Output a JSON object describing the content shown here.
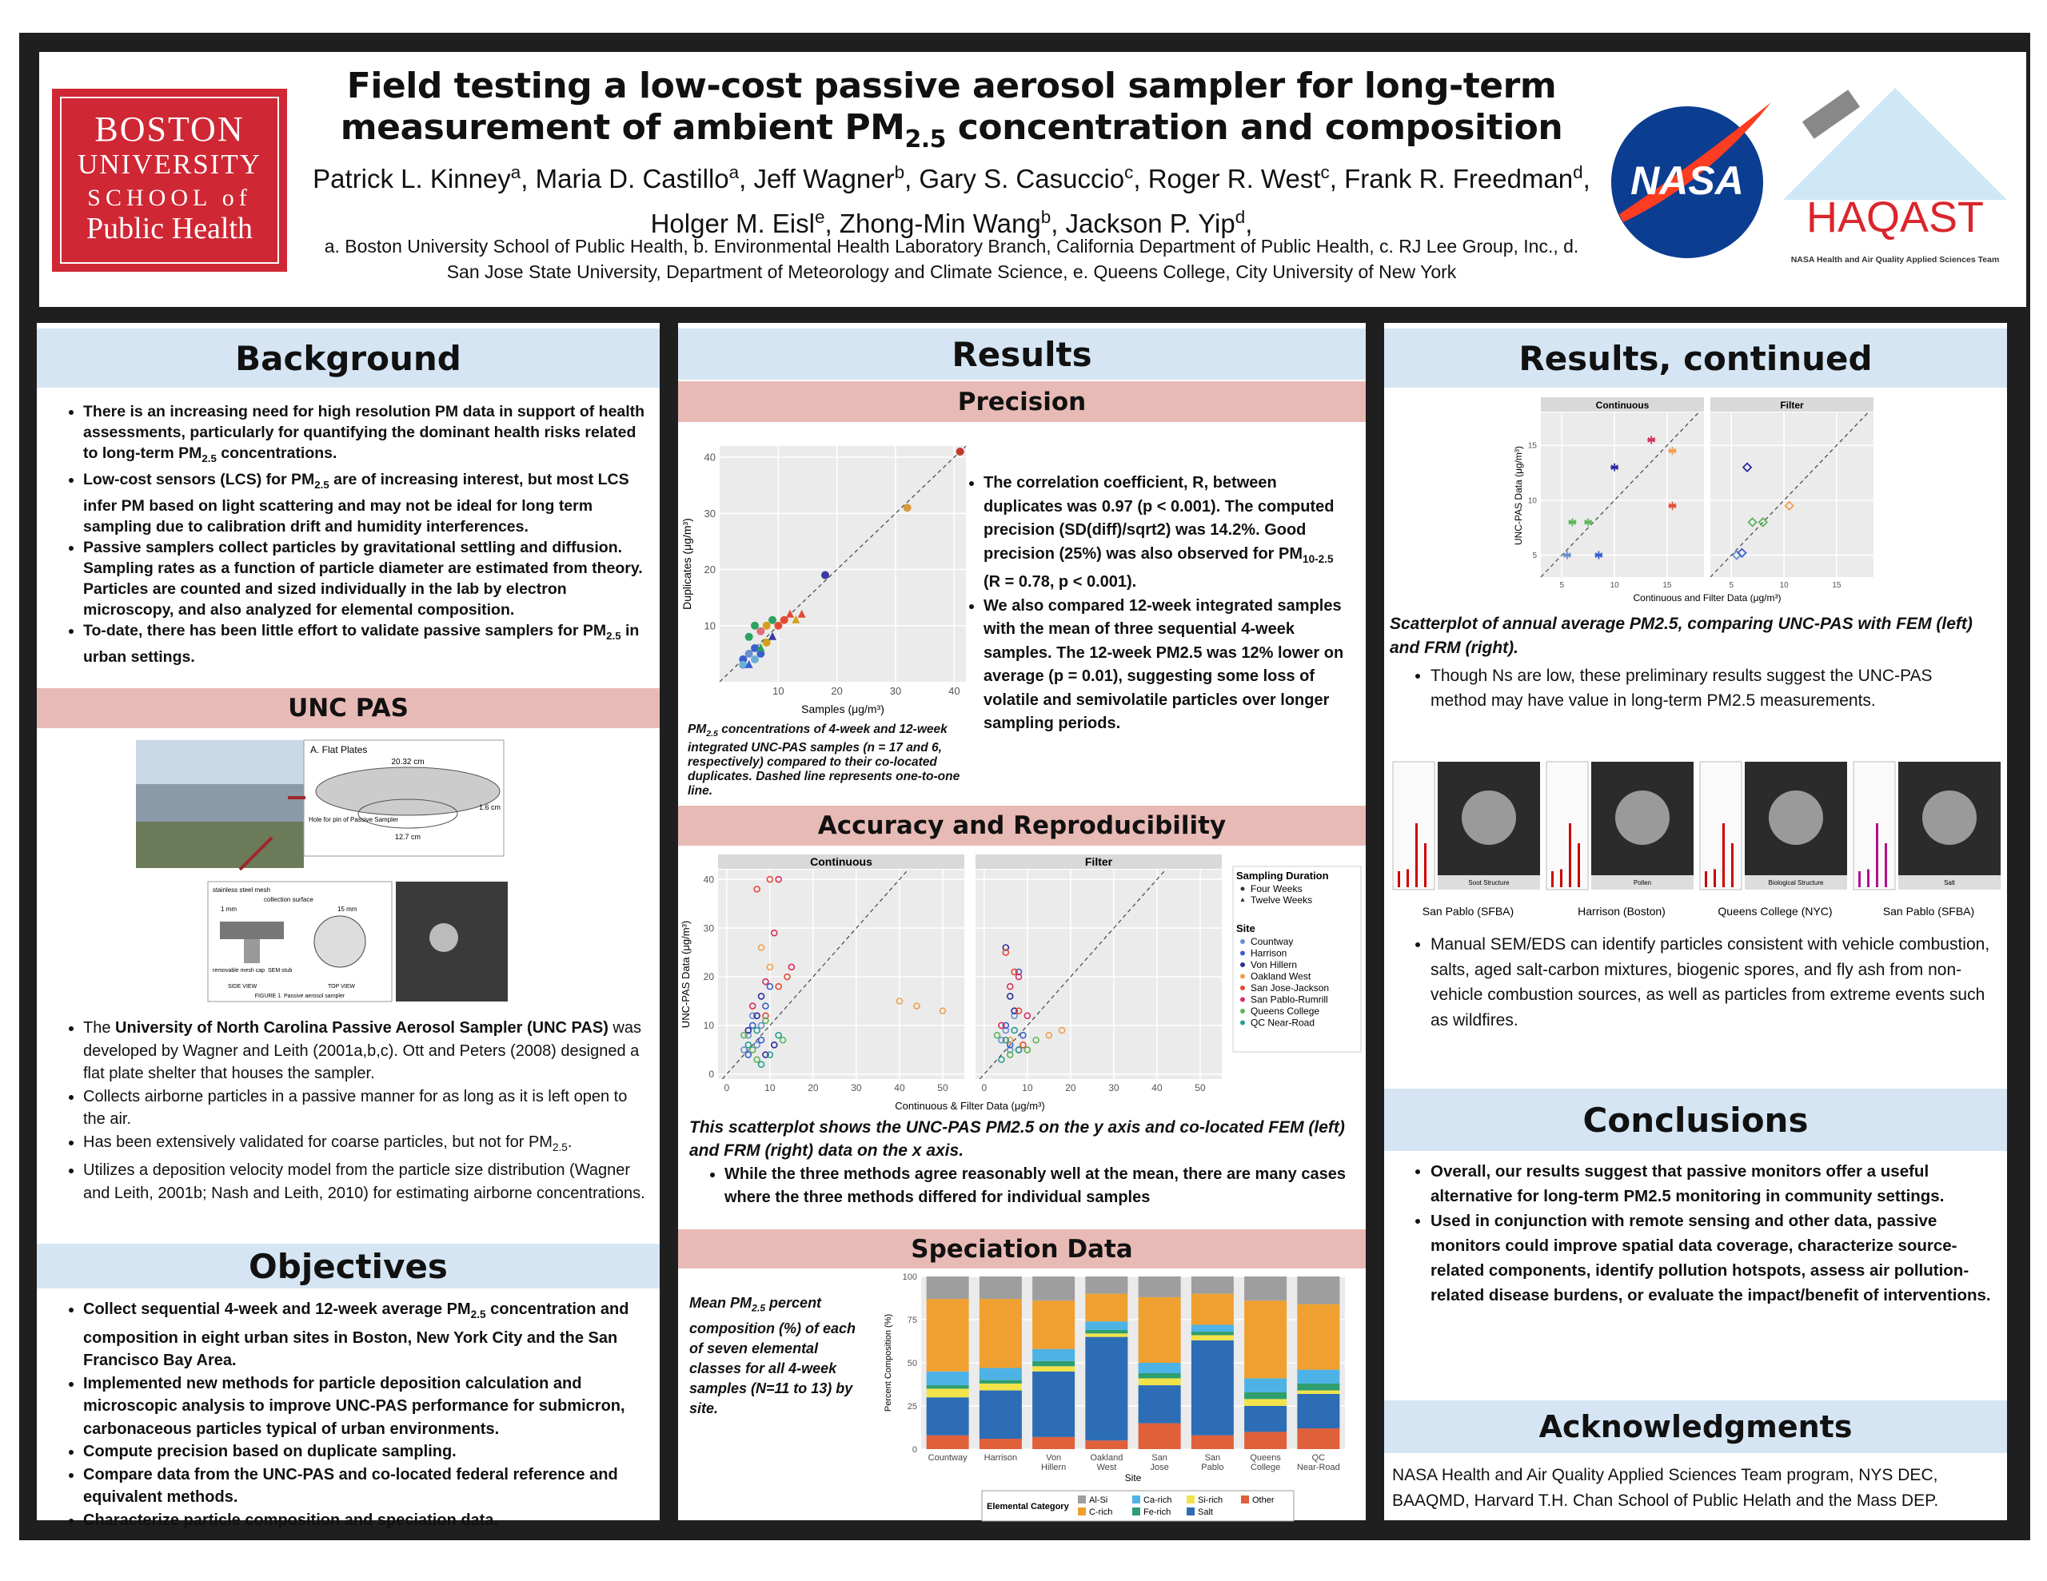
{
  "header": {
    "logo_left": [
      "BOSTON",
      "UNIVERSITY",
      "SCHOOL of",
      "Public Health"
    ],
    "title": [
      "Field testing a low-cost passive aerosol sampler for long-term measurement of ambient PM",
      {
        "sub": "2.5"
      },
      " concentration and composition"
    ],
    "authors": [
      "Patrick L. Kinney",
      {
        "sup": "a"
      },
      ", Maria D. Castillo",
      {
        "sup": "a"
      },
      ", Jeff Wagner",
      {
        "sup": "b"
      },
      ", Gary S. Casuccio",
      {
        "sup": "c"
      },
      ", Roger R. West",
      {
        "sup": "c"
      },
      ", Frank R. Freedman",
      {
        "sup": "d"
      },
      ", Holger M. Eisl",
      {
        "sup": "e"
      },
      ", Zhong-Min Wang",
      {
        "sup": "b"
      },
      ", Jackson P. Yip",
      {
        "sup": "d"
      },
      ","
    ],
    "affiliations": "a. Boston University School of Public Health, b. Environmental Health Laboratory Branch, California Department of Public Health, c. RJ Lee Group, Inc., d. San Jose State University, Department of Meteorology and Climate Science, e. Queens College, City University of New York",
    "nasa": "NASA",
    "haqast": "HAQAST",
    "haqast_sub": "NASA Health and Air Quality Applied Sciences Team"
  },
  "background": {
    "heading": "Background",
    "bullets": [
      [
        "There is an increasing need for high resolution PM data in support of health assessments, particularly for quantifying the dominant health risks related to long-term PM",
        {
          "sub": "2.5"
        },
        " concentrations."
      ],
      [
        "Low-cost sensors (LCS) for PM",
        {
          "sub": "2.5"
        },
        " are of increasing interest, but most LCS infer PM based on light scattering and may not be ideal for long term sampling due to calibration drift and humidity interferences."
      ],
      "Passive samplers collect particles by gravitational settling and diffusion. Sampling rates as a function of particle diameter are estimated from theory.  Particles are counted and sized individually in the lab by electron microscopy, and also analyzed for elemental composition.",
      [
        "To-date, there has been little effort to validate passive samplers for PM",
        {
          "sub": "2.5"
        },
        " in urban settings."
      ]
    ]
  },
  "unc_pas": {
    "heading": "UNC PAS",
    "figure": {
      "panel_title": "A. Flat Plates",
      "plate_width": "20.32 cm",
      "plate_height": "1.6 cm",
      "hole": "Hole for pin of Passive Sampler",
      "plate_depth": "12.7 cm",
      "mesh": "stainless steel mesh",
      "surface": "collection surface",
      "gap": "1 mm",
      "diameter": "15 mm",
      "cap": "removable mesh cap",
      "stub": "SEM stub",
      "side": "SIDE VIEW",
      "top": "TOP VIEW",
      "caption": "FIGURE 1. Passive aerosol sampler"
    },
    "bullets": [
      [
        "The ",
        {
          "b": "University of North Carolina Passive Aerosol Sampler (UNC PAS)"
        },
        " was developed by Wagner and Leith (2001a,b,c). Ott and Peters (2008) designed a flat plate shelter that houses the sampler."
      ],
      "Collects airborne particles in a passive manner for as long as it is left open to the air.",
      [
        "Has been extensively validated for coarse particles, but not for PM",
        {
          "sub": "2.5"
        },
        "."
      ],
      "Utilizes a deposition velocity model from the particle size distribution (Wagner and Leith, 2001b; Nash and Leith, 2010) for estimating airborne concentrations."
    ]
  },
  "objectives": {
    "heading": "Objectives",
    "bullets": [
      [
        "Collect sequential 4-week and 12-week average PM",
        {
          "sub": "2.5"
        },
        " concentration and composition in eight urban sites in Boston, New York City and the San Francisco Bay Area."
      ],
      "Implemented new methods for particle deposition calculation and microscopic analysis to improve UNC-PAS performance for submicron, carbonaceous particles typical of urban environments.",
      "Compute precision based on duplicate sampling.",
      "Compare data from the UNC-PAS and co-located federal reference and equivalent methods.",
      "Characterize particle composition and speciation data."
    ]
  },
  "results": {
    "heading": "Results",
    "precision_heading": "Precision",
    "precision_caption": [
      "PM",
      {
        "sub": "2.5"
      },
      " concentrations of 4-week and 12-week integrated UNC-PAS samples (n = 17 and 6, respectively) compared to their co-located duplicates. Dashed line represents one-to-one line."
    ],
    "precision_bullets": [
      [
        "The correlation coefficient, R, between duplicates was 0.97 (p < 0.001). The computed precision (SD(diff)/sqrt2) was 14.2%. Good precision (25%) was also observed for PM",
        {
          "sub": "10-2.5"
        },
        " (R = 0.78, p < 0.001)."
      ],
      "We also compared 12-week integrated samples with the mean of three sequential 4-week samples. The 12-week PM2.5 was 12% lower on average (p = 0.01), suggesting some loss of volatile and semivolatile particles over longer sampling  periods."
    ],
    "accuracy_heading": "Accuracy and Reproducibility",
    "accuracy_caption": "This scatterplot shows the UNC-PAS PM2.5 on the y axis and co-located FEM (left) and FRM (right) data on the x axis.",
    "accuracy_bullets": [
      "While the three methods agree reasonably well at the mean, there are many cases where the three methods differed for individual samples"
    ],
    "speciation_heading": "Speciation Data",
    "speciation_caption": [
      "Mean PM",
      {
        "sub": "2.5"
      },
      " percent composition (%) of each of seven elemental classes for all 4-week samples (N=11 to 13) by site."
    ]
  },
  "results_continued": {
    "heading": "Results, continued",
    "caption": "Scatterplot of annual average PM2.5, comparing UNC-PAS with FEM (left) and FRM (right).",
    "bullets": [
      "Though Ns are low, these preliminary results suggest the UNC-PAS method may have value in long-term PM2.5 measurements."
    ],
    "sem": [
      {
        "label": "Soot Structure",
        "caption": "San Pablo (SFBA)"
      },
      {
        "label": "Pollen",
        "caption": "Harrison (Boston)"
      },
      {
        "label": "Biological Structure",
        "caption": "Queens College (NYC)"
      },
      {
        "label": "Salt",
        "caption": "San Pablo (SFBA)"
      }
    ],
    "sem_bullets": [
      "Manual SEM/EDS can identify particles consistent with vehicle combustion, salts, aged salt-carbon mixtures, biogenic spores, and fly ash from non-vehicle combustion sources, as well as particles from extreme events such as wildfires."
    ]
  },
  "conclusions": {
    "heading": "Conclusions",
    "bullets": [
      "Overall, our results suggest that passive monitors offer a useful alternative for long-term PM2.5 monitoring in community settings.",
      "Used in conjunction with remote sensing and other data, passive monitors could improve spatial data coverage, characterize source-related components, identify pollution hotspots, assess air pollution-related disease burdens, or evaluate the impact/benefit of interventions."
    ]
  },
  "acknowledgments": {
    "heading": "Acknowledgments",
    "text": "NASA Health and Air Quality Applied Sciences Team program, NYS DEC, BAAQMD, Harvard T.H. Chan School of Public Helath and the Mass DEP."
  },
  "chart_data": [
    {
      "type": "scatter",
      "xlabel": "Samples (μg/m³)",
      "ylabel": "Duplicates (μg/m³)",
      "xlim": [
        0,
        42
      ],
      "ylim": [
        0,
        42
      ],
      "xticks": [
        10,
        20,
        30,
        40
      ],
      "yticks": [
        10,
        20,
        30,
        40
      ],
      "grid": true,
      "identity_line": true,
      "series": [
        {
          "marker": "circle",
          "x": [
            4,
            5,
            6,
            5,
            6,
            7,
            8,
            9,
            10,
            4,
            7,
            18,
            32,
            41,
            6,
            8,
            11
          ],
          "values": [
            4,
            5,
            6,
            8,
            10,
            9,
            10,
            11,
            10,
            3,
            5,
            19,
            31,
            41,
            4,
            7,
            11
          ],
          "colors": [
            "#3a5fcd",
            "#6a8fd0",
            "#3a5fcd",
            "#2ca25f",
            "#2ca25f",
            "#e06c75",
            "#d4a017",
            "#2ca25f",
            "#e34a33",
            "#6baed6",
            "#3a5fcd",
            "#3a3aa0",
            "#d99a3a",
            "#c0392b",
            "#6baed6",
            "#d4a017",
            "#e34a33"
          ]
        },
        {
          "marker": "triangle",
          "x": [
            5,
            7,
            12,
            14,
            13,
            9
          ],
          "values": [
            3,
            6,
            12,
            12,
            11,
            8
          ],
          "colors": [
            "#3a5fcd",
            "#2ca25f",
            "#e34a33",
            "#e34a33",
            "#d4a017",
            "#3a3aa0"
          ]
        }
      ]
    },
    {
      "type": "scatter",
      "facets": [
        "Continuous",
        "Filter"
      ],
      "xlabel": "Continuous & Filter Data (μg/m³)",
      "ylabel": "UNC-PAS Data (μg/m³)",
      "xlim": [
        -2,
        55
      ],
      "ylim": [
        -1,
        42
      ],
      "xticks": [
        0,
        10,
        20,
        30,
        40,
        50
      ],
      "yticks": [
        0,
        10,
        20,
        30,
        40
      ],
      "grid": true,
      "identity_line": true,
      "marker": "open-circle",
      "legend": {
        "duration_title": "Sampling Duration",
        "durations": [
          "Four Weeks",
          "Twelve Weeks"
        ],
        "site_title": "Site"
      },
      "series": [
        {
          "name": "Countway",
          "color": "#6a8fd0",
          "continuous_x": [
            5,
            6,
            7,
            8,
            4
          ],
          "continuous_y": [
            8,
            12,
            6,
            10,
            5
          ],
          "filter_x": [
            4,
            5,
            6,
            7
          ],
          "filter_y": [
            7,
            9,
            5,
            12
          ]
        },
        {
          "name": "Harrison",
          "color": "#3a5fcd",
          "continuous_x": [
            6,
            8,
            9,
            10,
            5
          ],
          "continuous_y": [
            10,
            7,
            14,
            18,
            4
          ],
          "filter_x": [
            5,
            6,
            8,
            9
          ],
          "filter_y": [
            10,
            6,
            21,
            8
          ]
        },
        {
          "name": "Von Hillern",
          "color": "#2c2c9e",
          "continuous_x": [
            7,
            9,
            5,
            11,
            8
          ],
          "continuous_y": [
            12,
            4,
            9,
            6,
            16
          ],
          "filter_x": [
            5,
            6,
            7,
            8
          ],
          "filter_y": [
            26,
            16,
            13,
            5
          ]
        },
        {
          "name": "Oakland West",
          "color": "#f0a050",
          "continuous_x": [
            40,
            44,
            50,
            8,
            10
          ],
          "continuous_y": [
            15,
            14,
            13,
            26,
            22
          ],
          "filter_x": [
            15,
            18,
            10,
            6
          ],
          "filter_y": [
            8,
            9,
            5,
            7
          ]
        },
        {
          "name": "San Jose-Jackson",
          "color": "#e34a33",
          "continuous_x": [
            10,
            12,
            7,
            14,
            9
          ],
          "continuous_y": [
            40,
            18,
            38,
            20,
            12
          ],
          "filter_x": [
            5,
            7,
            8,
            9
          ],
          "filter_y": [
            25,
            21,
            13,
            6
          ]
        },
        {
          "name": "San Pablo-Rumrill",
          "color": "#d62f5a",
          "continuous_x": [
            9,
            12,
            15,
            11,
            6
          ],
          "continuous_y": [
            19,
            40,
            22,
            29,
            14
          ],
          "filter_x": [
            6,
            8,
            4,
            10
          ],
          "filter_y": [
            18,
            20,
            10,
            12
          ]
        },
        {
          "name": "Queens College",
          "color": "#5ab55a",
          "continuous_x": [
            4,
            6,
            9,
            13,
            7
          ],
          "continuous_y": [
            8,
            5,
            11,
            7,
            3
          ],
          "filter_x": [
            6,
            10,
            3,
            12
          ],
          "filter_y": [
            4,
            5,
            8,
            7
          ]
        },
        {
          "name": "QC Near-Road",
          "color": "#2a9d8f",
          "continuous_x": [
            5,
            7,
            10,
            12,
            8
          ],
          "continuous_y": [
            6,
            9,
            4,
            8,
            2
          ],
          "filter_x": [
            4,
            7,
            5,
            8
          ],
          "filter_y": [
            3,
            9,
            7,
            5
          ]
        }
      ]
    },
    {
      "type": "scatter",
      "facets": [
        "Continuous",
        "Filter"
      ],
      "facet_markers": [
        "asterisk",
        "diamond"
      ],
      "xlabel": "Continuous and Filter Data (μg/m³)",
      "ylabel": "UNC-PAS Data (μg/m³)",
      "xlim": [
        3,
        18.5
      ],
      "ylim": [
        3,
        18
      ],
      "xticks": [
        5,
        10,
        15
      ],
      "yticks": [
        5,
        10,
        15
      ],
      "grid": true,
      "identity_line": true,
      "series": [
        {
          "color": "#6a8fd0",
          "continuous_x": [
            5.5
          ],
          "continuous_y": [
            5
          ],
          "filter_x": [
            5.5
          ],
          "filter_y": [
            5
          ]
        },
        {
          "color": "#3a5fcd",
          "continuous_x": [
            8.5
          ],
          "continuous_y": [
            5
          ],
          "filter_x": [
            6
          ],
          "filter_y": [
            5.2
          ]
        },
        {
          "color": "#2c2c9e",
          "continuous_x": [
            10
          ],
          "continuous_y": [
            13
          ],
          "filter_x": [
            6.5
          ],
          "filter_y": [
            13
          ]
        },
        {
          "color": "#5ab55a",
          "continuous_x": [
            6,
            7.5
          ],
          "continuous_y": [
            8,
            8
          ],
          "filter_x": [
            7,
            8
          ],
          "filter_y": [
            8,
            8
          ]
        },
        {
          "color": "#f0a050",
          "continuous_x": [
            15.5
          ],
          "continuous_y": [
            14.5
          ],
          "filter_x": [
            10.5
          ],
          "filter_y": [
            9.5
          ]
        },
        {
          "color": "#e34a33",
          "continuous_x": [
            15.5
          ],
          "continuous_y": [
            9.5
          ],
          "filter_x": [],
          "filter_y": []
        },
        {
          "color": "#d62f5a",
          "continuous_x": [
            13.5
          ],
          "continuous_y": [
            15.5
          ],
          "filter_x": [],
          "filter_y": []
        }
      ]
    },
    {
      "type": "bar",
      "stacked": true,
      "xlabel": "Site",
      "ylabel": "Percent Composition (%)",
      "legend_title": "Elemental Category",
      "categories": [
        "Countway",
        "Harrison",
        "Von Hillern",
        "Oakland West",
        "San Jose",
        "San Pablo",
        "Queens College",
        "QC Near-Road"
      ],
      "ylim": [
        0,
        100
      ],
      "yticks": [
        0,
        25,
        50,
        75,
        100
      ],
      "series": [
        {
          "name": "Other",
          "color": "#e0603a",
          "values": [
            8,
            6,
            7,
            5,
            15,
            8,
            10,
            12
          ]
        },
        {
          "name": "Salt",
          "color": "#2d6db5",
          "values": [
            22,
            28,
            38,
            60,
            22,
            55,
            15,
            20
          ]
        },
        {
          "name": "Si-rich",
          "color": "#f2e34a",
          "values": [
            5,
            4,
            3,
            2,
            4,
            3,
            4,
            2
          ]
        },
        {
          "name": "Fe-rich",
          "color": "#2e9e6e",
          "values": [
            2,
            2,
            3,
            2,
            3,
            2,
            4,
            4
          ]
        },
        {
          "name": "Ca-rich",
          "color": "#4db3e6",
          "values": [
            8,
            7,
            7,
            5,
            6,
            4,
            8,
            8
          ]
        },
        {
          "name": "C-rich",
          "color": "#f0a030",
          "values": [
            42,
            40,
            28,
            16,
            38,
            18,
            45,
            38
          ]
        },
        {
          "name": "Al-Si",
          "color": "#9e9e9e",
          "values": [
            13,
            13,
            14,
            10,
            12,
            10,
            14,
            16
          ]
        }
      ]
    }
  ]
}
